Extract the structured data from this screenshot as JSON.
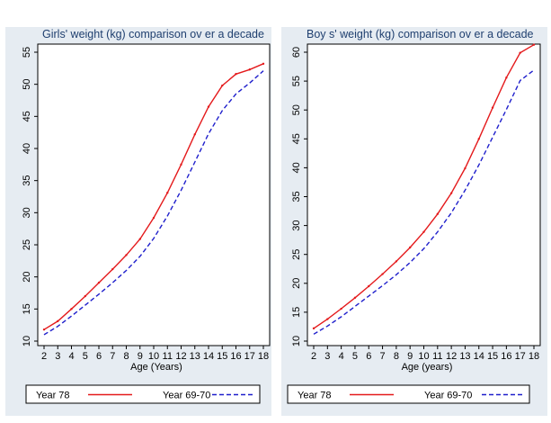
{
  "chart_data": [
    {
      "type": "line",
      "title": "Girls' weight (kg) comparison ov er a decade",
      "xlabel": "Age (Years)",
      "ylabel": "",
      "xlim": [
        2,
        18
      ],
      "ylim": [
        10,
        55
      ],
      "x_ticks": [
        2,
        3,
        4,
        5,
        6,
        7,
        8,
        9,
        10,
        11,
        12,
        13,
        14,
        15,
        16,
        17,
        18
      ],
      "y_ticks": [
        10,
        15,
        20,
        25,
        30,
        35,
        40,
        45,
        50,
        55
      ],
      "grid": false,
      "legend_position": "bottom",
      "x": [
        2,
        3,
        4,
        5,
        6,
        7,
        8,
        9,
        10,
        11,
        12,
        13,
        14,
        15,
        16,
        17,
        18
      ],
      "series": [
        {
          "name": "Year 78",
          "color": "#e41a1c",
          "style": "solid",
          "values": [
            11.8,
            13.1,
            15.0,
            17.0,
            19.1,
            21.2,
            23.4,
            25.9,
            29.2,
            33.1,
            37.5,
            42.2,
            46.5,
            49.8,
            51.6,
            52.3,
            53.2
          ]
        },
        {
          "name": "Year 69-70",
          "color": "#1f1fcc",
          "style": "dash",
          "values": [
            11.0,
            12.3,
            13.9,
            15.6,
            17.3,
            19.1,
            21.0,
            23.2,
            26.0,
            29.5,
            33.5,
            37.9,
            42.3,
            45.9,
            48.5,
            50.2,
            52.1
          ]
        }
      ]
    },
    {
      "type": "line",
      "title": "Boy s' weight (kg) comparison ov er a decade",
      "xlabel": "Age (years)",
      "ylabel": "",
      "xlim": [
        2,
        18
      ],
      "ylim": [
        10,
        60
      ],
      "x_ticks": [
        2,
        3,
        4,
        5,
        6,
        7,
        8,
        9,
        10,
        11,
        12,
        13,
        14,
        15,
        16,
        17,
        18
      ],
      "y_ticks": [
        10,
        15,
        20,
        25,
        30,
        35,
        40,
        45,
        50,
        55,
        60
      ],
      "grid": false,
      "legend_position": "bottom",
      "x": [
        2,
        3,
        4,
        5,
        6,
        7,
        8,
        9,
        10,
        11,
        12,
        13,
        14,
        15,
        16,
        17,
        18
      ],
      "series": [
        {
          "name": "Year 78",
          "color": "#e41a1c",
          "style": "solid",
          "values": [
            12.2,
            13.8,
            15.6,
            17.5,
            19.5,
            21.6,
            23.8,
            26.2,
            28.9,
            32.0,
            35.6,
            39.9,
            45.0,
            50.4,
            55.6,
            59.9,
            61.3
          ]
        },
        {
          "name": "Year 69-70",
          "color": "#1f1fcc",
          "style": "dash",
          "values": [
            11.2,
            12.6,
            14.2,
            16.0,
            17.8,
            19.6,
            21.5,
            23.6,
            26.0,
            28.9,
            32.2,
            36.1,
            40.5,
            45.3,
            50.1,
            55.1,
            56.9
          ]
        }
      ]
    }
  ]
}
